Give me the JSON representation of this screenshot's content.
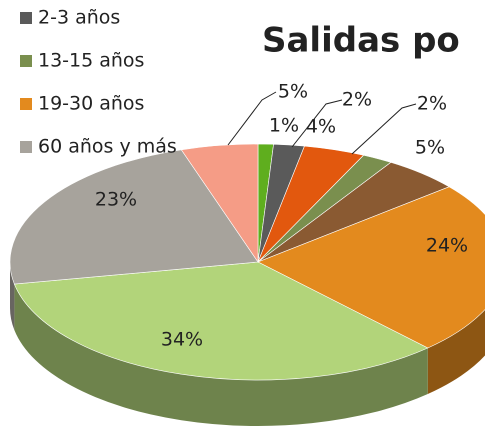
{
  "chart_data": {
    "type": "pie3d",
    "title": "Salidas po",
    "categories": [
      null,
      "2-3 años",
      null,
      "13-15 años",
      null,
      "19-30 años",
      null,
      "60 años y más",
      null
    ],
    "values": [
      1,
      2,
      4,
      2,
      5,
      24,
      34,
      23,
      5
    ],
    "value_labels": [
      "1%",
      "2%",
      "4%",
      "2%",
      "5%",
      "24%",
      "34%",
      "23%",
      "5%"
    ],
    "colors": [
      "#5fae1e",
      "#5a5a5a",
      "#e2580e",
      "#7a8f4e",
      "#8a5a32",
      "#e38a1e",
      "#b2d47a",
      "#a7a39c",
      "#f59c86"
    ],
    "legend": "top-left"
  }
}
